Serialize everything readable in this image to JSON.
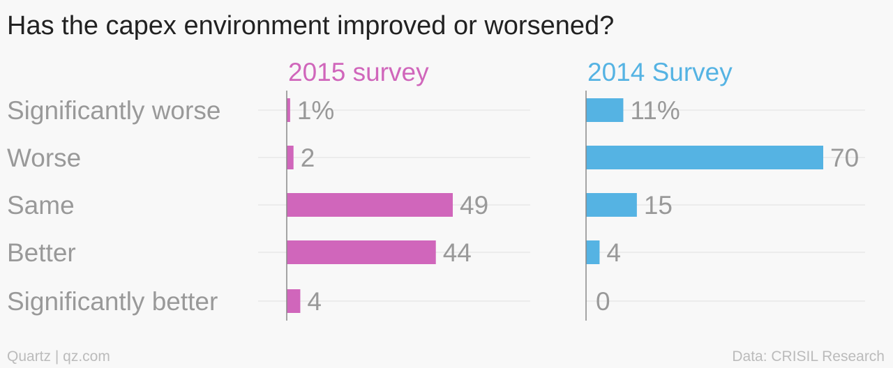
{
  "title": "Has the capex environment improved or worsened?",
  "footer": {
    "source_left": "Quartz | qz.com",
    "source_right": "Data: CRISIL Research"
  },
  "colors": {
    "series_2015": "#d066bb",
    "series_2014": "#55b3e3",
    "category_text": "#999999",
    "value_text": "#999999",
    "gridline": "#e8e8e8",
    "axis": "#888888"
  },
  "chart_data": {
    "type": "bar",
    "orientation": "horizontal",
    "categories": [
      "Significantly worse",
      "Worse",
      "Same",
      "Better",
      "Significantly better"
    ],
    "series": [
      {
        "name": "2015 survey",
        "values": [
          1,
          2,
          49,
          44,
          4
        ],
        "labels": [
          "1%",
          "2",
          "49",
          "44",
          "4"
        ]
      },
      {
        "name": "2014 Survey",
        "values": [
          11,
          70,
          15,
          4,
          0
        ],
        "labels": [
          "11%",
          "70",
          "15",
          "4",
          "0"
        ]
      }
    ],
    "xlim": [
      0,
      70
    ],
    "grid": true,
    "legend": "series titles above each panel"
  }
}
